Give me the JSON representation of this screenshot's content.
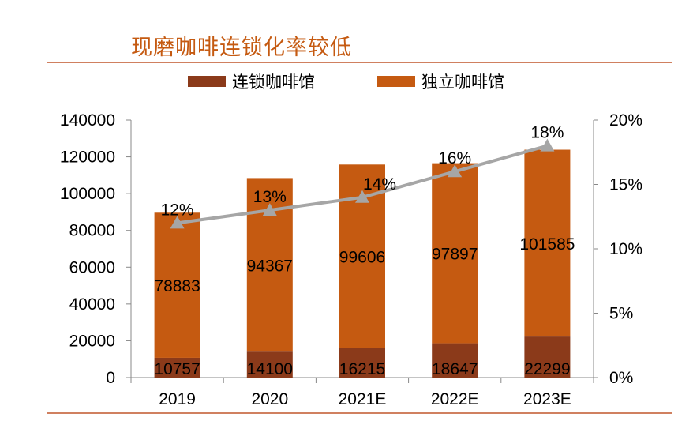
{
  "chart_data": {
    "type": "bar",
    "title": "现磨咖啡连锁化率较低",
    "categories": [
      "2019",
      "2020",
      "2021E",
      "2022E",
      "2023E"
    ],
    "series": [
      {
        "name": "连锁咖啡馆",
        "values": [
          10757,
          14100,
          16215,
          18647,
          22299
        ],
        "color": "#8b3a1a",
        "kind": "stacked-bar"
      },
      {
        "name": "独立咖啡馆",
        "values": [
          78883,
          94367,
          99606,
          97897,
          101585
        ],
        "color": "#c55a11",
        "kind": "stacked-bar"
      }
    ],
    "line_series": {
      "values": [
        12,
        13,
        14,
        16,
        18
      ],
      "labels": [
        "12%",
        "13%",
        "14%",
        "16%",
        "18%"
      ],
      "color": "#a6a6a6",
      "axis": "right"
    },
    "y_left": {
      "min": 0,
      "max": 140000,
      "ticks": [
        "0",
        "20000",
        "40000",
        "60000",
        "80000",
        "100000",
        "120000",
        "140000"
      ]
    },
    "y_right": {
      "min": 0,
      "max": 20,
      "ticks": [
        "0%",
        "5%",
        "10%",
        "15%",
        "20%"
      ]
    },
    "legend_position": "top",
    "grid": false
  },
  "colors": {
    "title": "#c55a11",
    "rule": "#d08060",
    "axis": "#888888"
  }
}
